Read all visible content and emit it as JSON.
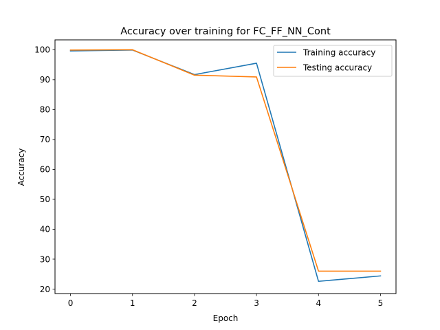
{
  "chart_data": {
    "type": "line",
    "title": "Accuracy over training for FC_FF_NN_Cont",
    "xlabel": "Epoch",
    "ylabel": "Accuracy",
    "x": [
      0,
      1,
      2,
      3,
      4,
      5
    ],
    "xticks": [
      "0",
      "1",
      "2",
      "3",
      "4",
      "5"
    ],
    "yticks": [
      "20",
      "30",
      "40",
      "50",
      "60",
      "70",
      "80",
      "90",
      "100"
    ],
    "xlim": [
      -0.25,
      5.25
    ],
    "ylim": [
      18.5,
      103.3
    ],
    "grid": false,
    "legend_position": "upper right",
    "series": [
      {
        "name": "Training accuracy",
        "color": "#1f77b4",
        "values": [
          99.6,
          99.9,
          91.7,
          95.5,
          22.6,
          24.4
        ]
      },
      {
        "name": "Testing accuracy",
        "color": "#ff7f0e",
        "values": [
          99.9,
          100.0,
          91.5,
          90.9,
          26.0,
          26.0
        ]
      }
    ]
  }
}
